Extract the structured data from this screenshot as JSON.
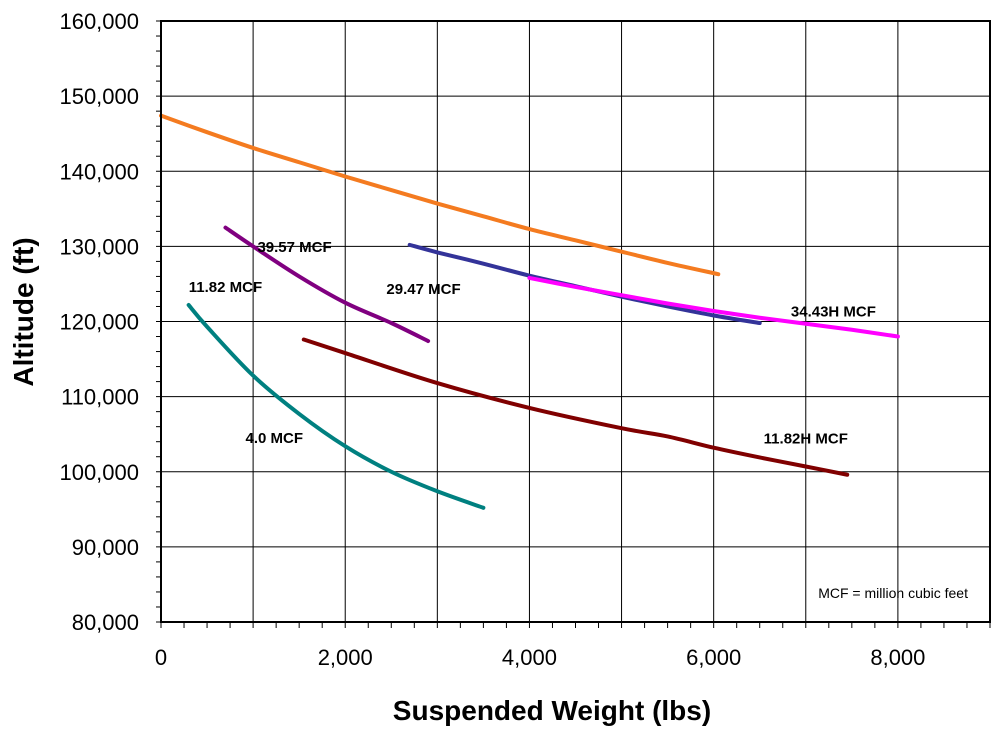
{
  "chart_data": {
    "type": "line",
    "title": "",
    "xlabel": "Suspended Weight (lbs)",
    "ylabel": "Altitude (ft)",
    "xlim": [
      0,
      9000
    ],
    "ylim": [
      80000,
      160000
    ],
    "x_ticks": [
      0,
      2000,
      4000,
      6000,
      8000
    ],
    "x_tick_labels": [
      "0",
      "2,000",
      "4,000",
      "6,000",
      "8,000"
    ],
    "y_ticks": [
      80000,
      90000,
      100000,
      110000,
      120000,
      130000,
      140000,
      150000,
      160000
    ],
    "y_tick_labels": [
      "80,000",
      "90,000",
      "100,000",
      "110,000",
      "120,000",
      "130,000",
      "140,000",
      "150,000",
      "160,000"
    ],
    "grid": true,
    "note": "MCF =  million cubic feet",
    "series": [
      {
        "name": "39.57 MCF",
        "color": "#F47B20",
        "x": [
          0,
          500,
          1000,
          1500,
          2000,
          2500,
          3000,
          3500,
          4000,
          4500,
          5000,
          5500,
          6050
        ],
        "y": [
          147400,
          145200,
          143100,
          141200,
          139300,
          137500,
          135700,
          134000,
          132300,
          130800,
          129300,
          127800,
          126300
        ]
      },
      {
        "name": "11.82 MCF",
        "color": "#800080",
        "x": [
          700,
          1000,
          1500,
          2000,
          2500,
          2900
        ],
        "y": [
          132500,
          130000,
          126000,
          122500,
          119800,
          117400
        ]
      },
      {
        "name": "4.0 MCF",
        "color": "#008080",
        "x": [
          300,
          500,
          1000,
          1500,
          2000,
          2500,
          3000,
          3500
        ],
        "y": [
          122200,
          119300,
          112800,
          107700,
          103400,
          100000,
          97400,
          95200
        ]
      },
      {
        "name": "29.47 MCF",
        "color": "#333399",
        "x": [
          2700,
          3000,
          3500,
          4000,
          4500,
          5000,
          5500,
          6000,
          6500
        ],
        "y": [
          130200,
          129200,
          127700,
          126100,
          124700,
          123300,
          122000,
          120800,
          119800
        ]
      },
      {
        "name": "34.43H MCF",
        "color": "#FF00FF",
        "x": [
          4000,
          4500,
          5000,
          5500,
          6000,
          6500,
          7000,
          7500,
          8000
        ],
        "y": [
          125800,
          124600,
          123500,
          122400,
          121400,
          120500,
          119700,
          118900,
          118000
        ]
      },
      {
        "name": "11.82H MCF",
        "color": "#800000",
        "x": [
          1550,
          2000,
          3000,
          4000,
          5000,
          5500,
          6000,
          6500,
          7000,
          7450
        ],
        "y": [
          117600,
          115800,
          111800,
          108500,
          105800,
          104700,
          103200,
          101900,
          100700,
          99600
        ]
      }
    ],
    "annotations": [
      {
        "series": 0,
        "text": "39.57 MCF",
        "x": 1450,
        "y": 129900
      },
      {
        "series": 1,
        "text": "11.82 MCF",
        "x": 700,
        "y": 124600
      },
      {
        "series": 2,
        "text": "4.0 MCF",
        "x": 1230,
        "y": 104500
      },
      {
        "series": 3,
        "text": "29.47 MCF",
        "x": 2850,
        "y": 124300
      },
      {
        "series": 4,
        "text": "34.43H MCF",
        "x": 7300,
        "y": 121300
      },
      {
        "series": 5,
        "text": "11.82H MCF",
        "x": 7000,
        "y": 104400
      }
    ]
  }
}
